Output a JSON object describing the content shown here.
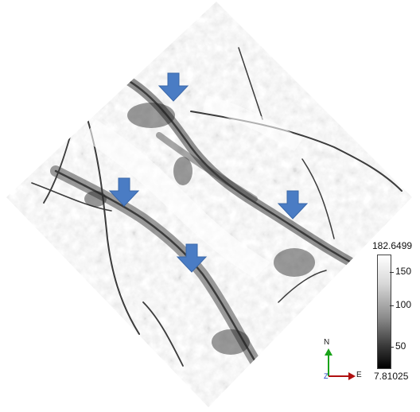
{
  "colorbar": {
    "max_label": "182.6499",
    "min_label": "7.81025",
    "ticks": [
      "150",
      "100",
      "50"
    ]
  },
  "axes": {
    "north": "N",
    "east": "E",
    "z": "Z"
  },
  "colors": {
    "arrow": "#4a7cc4",
    "north_axis": "#1aa31a",
    "east_axis": "#b01010",
    "z_axis": "#1a3fbf"
  },
  "arrows": {
    "count": 4,
    "direction": "down"
  }
}
